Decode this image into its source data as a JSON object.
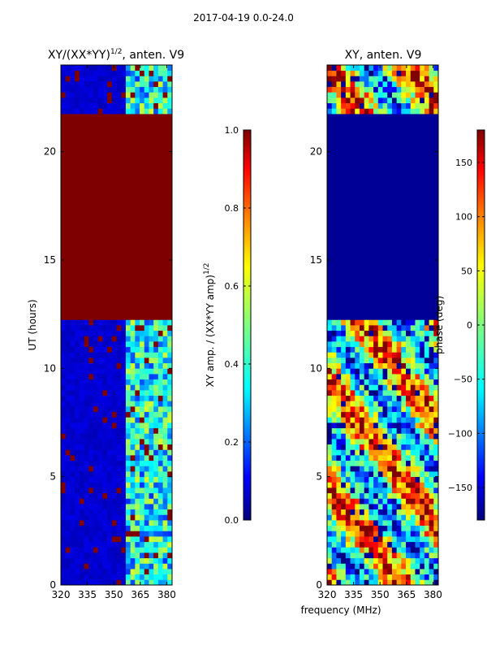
{
  "figure": {
    "suptitle": "2017-04-19 0.0-24.0",
    "xlabel": "frequency (MHz)"
  },
  "colors": {
    "jet": [
      "#00007f",
      "#0000ff",
      "#007fff",
      "#00ffff",
      "#7fff7f",
      "#ffff00",
      "#ff7f00",
      "#ff0000",
      "#7f0000"
    ]
  },
  "chart_data": [
    {
      "type": "heatmap",
      "title": "XY/(XX*YY)^{1/2}, anten. V9",
      "title_main": "XY/(XX*YY)",
      "title_exp": "1/2",
      "title_tail": ", anten. V9",
      "xlabel": "frequency (MHz)",
      "ylabel": "UT (hours)",
      "xlim": [
        320,
        383
      ],
      "ylim": [
        0,
        24
      ],
      "xticks": [
        320,
        335,
        350,
        365,
        380
      ],
      "yticks": [
        0,
        5,
        10,
        15,
        20
      ],
      "colorbar": {
        "label_main": "XY amp. / (XX*YY amp)",
        "label_exp": "1/2",
        "range": [
          0.0,
          1.0
        ],
        "ticks": [
          0.0,
          0.2,
          0.4,
          0.6,
          0.8,
          1.0
        ],
        "tick_labels": [
          "0.0",
          "0.2",
          "0.4",
          "0.6",
          "0.8",
          "1.0"
        ]
      },
      "regions": [
        {
          "ut": [
            12.2,
            21.8
          ],
          "level": 1.0,
          "desc": "saturated (flagged)"
        },
        {
          "ut": [
            0.0,
            12.2
          ],
          "level": 0.05,
          "desc": "low amplitude, higher near 360-380 MHz"
        },
        {
          "ut": [
            21.8,
            24.0
          ],
          "level": 0.1,
          "desc": "mixed, striped"
        }
      ],
      "tick_labels_x": [
        "320",
        "335",
        "350",
        "365",
        "380"
      ],
      "tick_labels_y": [
        "0",
        "5",
        "10",
        "15",
        "20"
      ]
    },
    {
      "type": "heatmap",
      "title": "XY, anten. V9",
      "xlim": [
        320,
        383
      ],
      "ylim": [
        0,
        24
      ],
      "xticks": [
        320,
        335,
        350,
        365,
        380
      ],
      "yticks": [
        0,
        5,
        10,
        15,
        20
      ],
      "colorbar": {
        "label": "phase (deg)",
        "range": [
          -180,
          180
        ],
        "ticks": [
          150,
          100,
          50,
          0,
          -50,
          -100,
          -150
        ],
        "tick_labels": [
          "150",
          "100",
          "50",
          "0",
          "−50",
          "−100",
          "−150"
        ]
      },
      "regions": [
        {
          "ut": [
            12.2,
            21.8
          ],
          "level": -180,
          "desc": "constant (flagged)"
        },
        {
          "ut": [
            0.0,
            12.2
          ],
          "level": "varied",
          "desc": "noisy phase"
        },
        {
          "ut": [
            21.8,
            24.0
          ],
          "level": "varied",
          "desc": "noisy phase"
        }
      ],
      "tick_labels_x": [
        "320",
        "335",
        "350",
        "365",
        "380"
      ],
      "tick_labels_y": [
        "0",
        "5",
        "10",
        "15",
        "20"
      ]
    }
  ]
}
